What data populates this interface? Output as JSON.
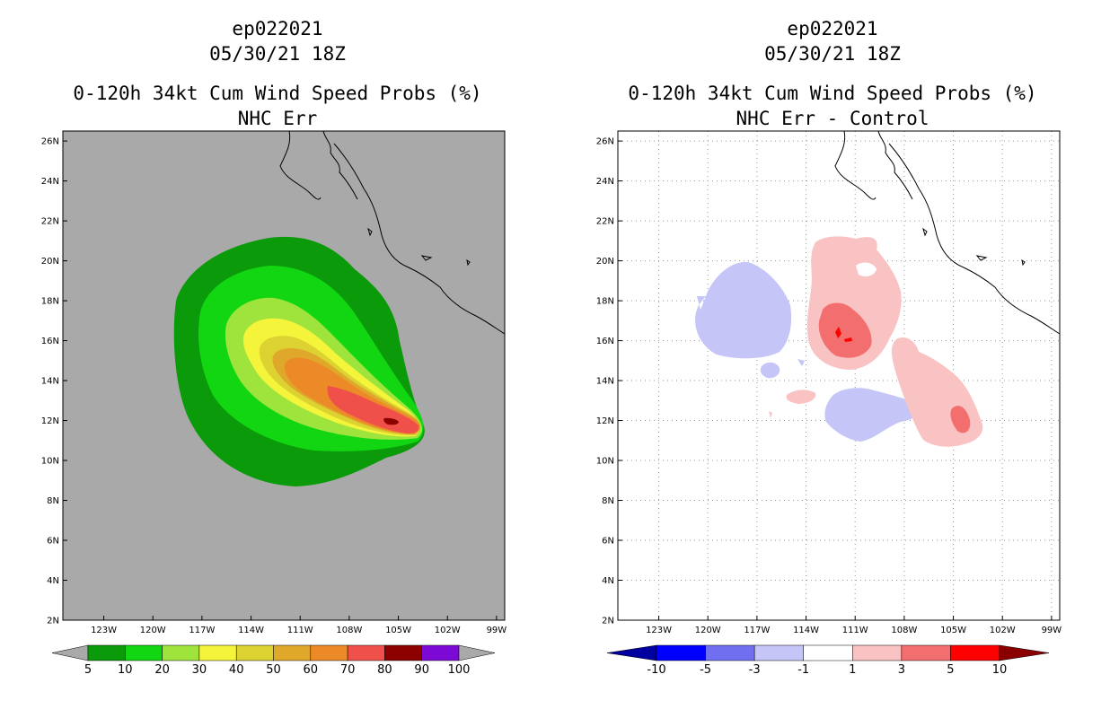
{
  "colors": {
    "land_gray": "#a9a9a9",
    "c5": "#0a9a0a",
    "c10": "#11d611",
    "c20": "#9ee43c",
    "c30": "#f4f43a",
    "c40": "#dcd231",
    "c50": "#e0a82a",
    "c60": "#ec8a28",
    "c70": "#f0504a",
    "c80": "#8c0000",
    "c90": "#7c0ad4",
    "d_n10": "#0000a0",
    "d_n5": "#0000ff",
    "d_n3": "#6f6ff0",
    "d_n1": "#c5c5f7",
    "d_0": "#ffffff",
    "d_1": "#f9c3c3",
    "d_3": "#f36e6e",
    "d_5": "#ff0000",
    "d_10": "#8a0000"
  },
  "chart_data": [
    {
      "type": "heatmap",
      "storm": "ep022021",
      "datetime": "05/30/21 18Z",
      "title": "0-120h 34kt Cum Wind Speed Probs (%)",
      "subtitle": "NHC Err",
      "x_ticks": [
        "123W",
        "120W",
        "117W",
        "114W",
        "111W",
        "108W",
        "105W",
        "102W",
        "99W"
      ],
      "x_tick_values": [
        -123,
        -120,
        -117,
        -114,
        -111,
        -108,
        -105,
        -102,
        -99
      ],
      "y_ticks": [
        "2N",
        "4N",
        "6N",
        "8N",
        "10N",
        "12N",
        "14N",
        "16N",
        "18N",
        "20N",
        "22N",
        "24N",
        "26N"
      ],
      "y_tick_values": [
        2,
        4,
        6,
        8,
        10,
        12,
        14,
        16,
        18,
        20,
        22,
        24,
        26
      ],
      "xlim": [
        -125.5,
        -98.5
      ],
      "ylim": [
        2,
        26.5
      ],
      "grid": false,
      "colorbar_labels": [
        "5",
        "10",
        "20",
        "30",
        "40",
        "50",
        "60",
        "70",
        "80",
        "90",
        "100"
      ],
      "contour_levels": [
        5,
        10,
        20,
        30,
        40,
        50,
        60,
        70,
        80,
        90,
        100
      ],
      "storm_center": {
        "lon": -103.9,
        "lat": 11.1
      },
      "max_probability_region": {
        "lon": -105.4,
        "lat": 11.9,
        "value_range": "80-90"
      }
    },
    {
      "type": "heatmap",
      "storm": "ep022021",
      "datetime": "05/30/21 18Z",
      "title": "0-120h 34kt Cum Wind Speed Probs (%)",
      "subtitle": "NHC Err - Control",
      "x_ticks": [
        "123W",
        "120W",
        "117W",
        "114W",
        "111W",
        "108W",
        "105W",
        "102W",
        "99W"
      ],
      "x_tick_values": [
        -123,
        -120,
        -117,
        -114,
        -111,
        -108,
        -105,
        -102,
        -99
      ],
      "y_ticks": [
        "2N",
        "4N",
        "6N",
        "8N",
        "10N",
        "12N",
        "14N",
        "16N",
        "18N",
        "20N",
        "22N",
        "24N",
        "26N"
      ],
      "y_tick_values": [
        2,
        4,
        6,
        8,
        10,
        12,
        14,
        16,
        18,
        20,
        22,
        24,
        26
      ],
      "xlim": [
        -125.5,
        -98.5
      ],
      "ylim": [
        2,
        26.5
      ],
      "grid": true,
      "colorbar_labels": [
        "-10",
        "-5",
        "-3",
        "-1",
        "1",
        "3",
        "5",
        "10"
      ],
      "contour_levels": [
        -10,
        -5,
        -3,
        -1,
        1,
        3,
        5,
        10
      ],
      "positive_regions": [
        {
          "name": "north",
          "lon": -110.5,
          "lat": 17.5,
          "level": 1
        },
        {
          "name": "north-core",
          "lon": -110.6,
          "lat": 16.3,
          "level": 3
        },
        {
          "name": "southeast",
          "lon": -104.0,
          "lat": 11.8,
          "level": 1
        }
      ],
      "negative_regions": [
        {
          "name": "west",
          "lon": -117.8,
          "lat": 17.3,
          "level": -1
        },
        {
          "name": "south",
          "lon": -110.5,
          "lat": 12.3,
          "level": -1
        }
      ]
    }
  ]
}
